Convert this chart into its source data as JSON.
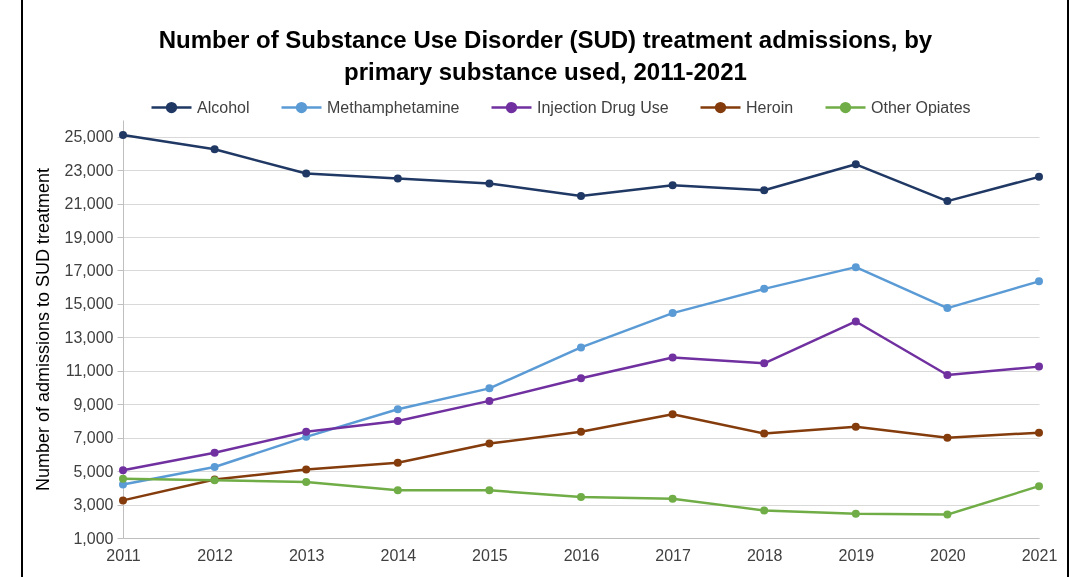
{
  "chart_data": {
    "type": "line",
    "title": "Number of Substance Use Disorder (SUD) treatment admissions, by primary substance used, 2011-2021",
    "ylabel": "Number of admissions to SUD treatment",
    "categories": [
      "2011",
      "2012",
      "2013",
      "2014",
      "2015",
      "2016",
      "2017",
      "2018",
      "2019",
      "2020",
      "2021"
    ],
    "series": [
      {
        "name": "Alcohol",
        "color": "#203864",
        "values": [
          25100,
          24250,
          22800,
          22500,
          22200,
          21450,
          22100,
          21800,
          23350,
          21150,
          22600
        ]
      },
      {
        "name": "Methamphetamine",
        "color": "#5b9bd5",
        "values": [
          4200,
          5250,
          7050,
          8700,
          9950,
          12400,
          14450,
          15900,
          17200,
          14750,
          16350
        ]
      },
      {
        "name": "Injection Drug Use",
        "color": "#7030a0",
        "values": [
          5050,
          6100,
          7350,
          8000,
          9200,
          10550,
          11800,
          11450,
          13950,
          10750,
          11250
        ]
      },
      {
        "name": "Heroin",
        "color": "#843c0c",
        "values": [
          3250,
          4500,
          5100,
          5500,
          6650,
          7350,
          8400,
          7250,
          7650,
          7000,
          7300
        ]
      },
      {
        "name": "Other Opiates",
        "color": "#70ad47",
        "values": [
          4550,
          4450,
          4350,
          3850,
          3850,
          3450,
          3350,
          2650,
          2450,
          2400,
          4100
        ]
      }
    ],
    "ylim": [
      1000,
      26000
    ],
    "yticks": [
      {
        "value": 1000,
        "label": "1,000"
      },
      {
        "value": 3000,
        "label": "3,000"
      },
      {
        "value": 5000,
        "label": "5,000"
      },
      {
        "value": 7000,
        "label": "7,000"
      },
      {
        "value": 9000,
        "label": "9,000"
      },
      {
        "value": 11000,
        "label": "11,000"
      },
      {
        "value": 13000,
        "label": "13,000"
      },
      {
        "value": 15000,
        "label": "15,000"
      },
      {
        "value": 17000,
        "label": "17,000"
      },
      {
        "value": 19000,
        "label": "19,000"
      },
      {
        "value": 21000,
        "label": "21,000"
      },
      {
        "value": 23000,
        "label": "23,000"
      },
      {
        "value": 25000,
        "label": "25,000"
      }
    ],
    "grid": "y",
    "legend": "top",
    "marker": "circle",
    "line_style": "solid"
  }
}
